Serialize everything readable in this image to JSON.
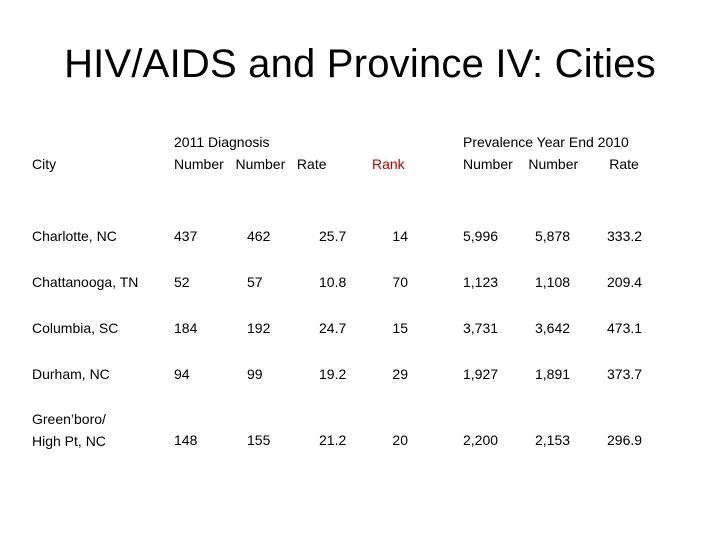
{
  "slide": {
    "title": "HIV/AIDS and Province IV: Cities"
  },
  "headers": {
    "city": "City",
    "diagnosis_group": "2011 Diagnosis",
    "diagnosis_cols": "Number   Number   Rate",
    "rank": "Rank",
    "prevalence_group": "Prevalence Year End 2010",
    "prevalence_cols": "Number    Number        Rate"
  },
  "rows": [
    {
      "city": "Charlotte, NC",
      "d_num1": "437",
      "d_num2": "462",
      "d_rate": "25.7",
      "rank": "14",
      "p_num1": "5,996",
      "p_num2": "5,878",
      "p_rate": "333.2"
    },
    {
      "city": "Chattanooga, TN",
      "d_num1": "52",
      "d_num2": "57",
      "d_rate": "10.8",
      "rank": "70",
      "p_num1": "1,123",
      "p_num2": "1,108",
      "p_rate": "209.4"
    },
    {
      "city": "Columbia, SC",
      "d_num1": "184",
      "d_num2": "192",
      "d_rate": "24.7",
      "rank": "15",
      "p_num1": "3,731",
      "p_num2": "3,642",
      "p_rate": "473.1"
    },
    {
      "city": "Durham, NC",
      "d_num1": "94",
      "d_num2": "99",
      "d_rate": "19.2",
      "rank": "29",
      "p_num1": "1,927",
      "p_num2": "1,891",
      "p_rate": "373.7"
    },
    {
      "city_line1": "Green’boro/",
      "city_line2": "High Pt, NC",
      "d_num1": "148",
      "d_num2": "155",
      "d_rate": "21.2",
      "rank": "20",
      "p_num1": "2,200",
      "p_num2": "2,153",
      "p_rate": "296.9"
    }
  ]
}
